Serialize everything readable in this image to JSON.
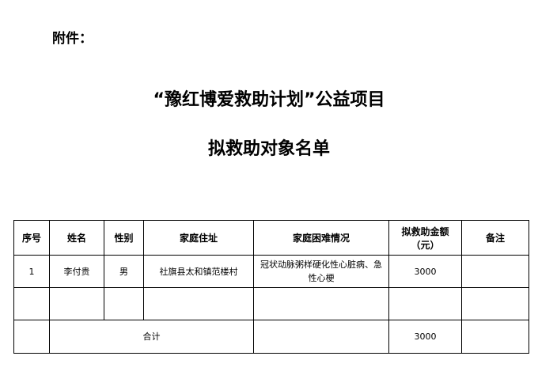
{
  "attachment_label": "附件：",
  "title_line1": "“豫红博爱救助计划”公益项目",
  "title_line2": "拟救助对象名单",
  "table": {
    "headers": [
      "序号",
      "姓名",
      "性别",
      "家庭住址",
      "家庭困难情况",
      "拟救助金额（元）",
      "备注"
    ],
    "rows": [
      [
        "1",
        "李付贵",
        "男",
        "社旗县太和镇范楼村",
        "冠状动脉粥样硬化性心脏病、急性心梗",
        "3000",
        ""
      ],
      [
        "",
        "",
        "",
        "",
        "",
        "",
        ""
      ]
    ],
    "total": {
      "label": "合计",
      "amount": "3000"
    }
  }
}
